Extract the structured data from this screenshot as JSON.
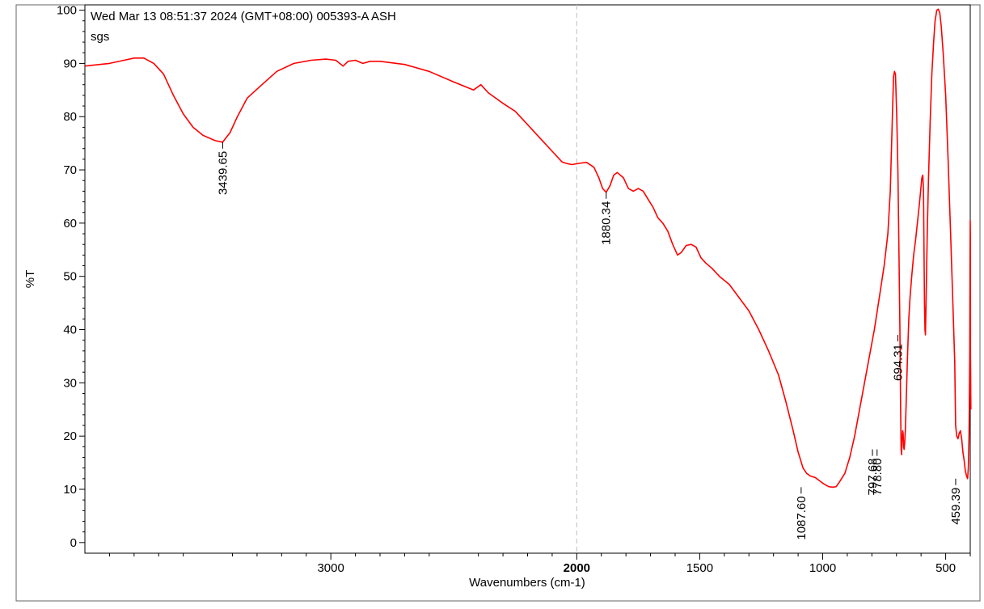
{
  "header": {
    "line1": "Wed Mar 13 08:51:37 2024 (GMT+08:00)  005393-A  ASH",
    "line2": "sgs"
  },
  "chart_data": {
    "type": "line",
    "title": "",
    "xlabel": "Wavenumbers (cm-1)",
    "ylabel": "%T",
    "xlim": [
      4000,
      400
    ],
    "ylim": [
      -2,
      101
    ],
    "x_reversed": true,
    "grid": false,
    "reference_line": {
      "x": 2000,
      "style": "dashed",
      "color": "#c8c8c8"
    },
    "x_ticks": [
      {
        "value": 3000,
        "label": "3000",
        "bold": false
      },
      {
        "value": 2000,
        "label": "2000",
        "bold": true
      },
      {
        "value": 1500,
        "label": "1500",
        "bold": false
      },
      {
        "value": 1000,
        "label": "1000",
        "bold": false
      },
      {
        "value": 500,
        "label": "500",
        "bold": false
      }
    ],
    "y_ticks": [
      {
        "value": 0,
        "label": "0"
      },
      {
        "value": 10,
        "label": "10"
      },
      {
        "value": 20,
        "label": "20"
      },
      {
        "value": 30,
        "label": "30"
      },
      {
        "value": 40,
        "label": "40"
      },
      {
        "value": 50,
        "label": "50"
      },
      {
        "value": 60,
        "label": "60"
      },
      {
        "value": 70,
        "label": "70"
      },
      {
        "value": 80,
        "label": "80"
      },
      {
        "value": 90,
        "label": "90"
      },
      {
        "value": 100,
        "label": "100"
      }
    ],
    "series": [
      {
        "color": "#ff0000",
        "points": [
          [
            4000,
            89.5
          ],
          [
            3900,
            90.0
          ],
          [
            3850,
            90.5
          ],
          [
            3800,
            91.0
          ],
          [
            3760,
            91.0
          ],
          [
            3720,
            90.0
          ],
          [
            3680,
            88.0
          ],
          [
            3640,
            84.0
          ],
          [
            3600,
            80.5
          ],
          [
            3560,
            78.0
          ],
          [
            3520,
            76.5
          ],
          [
            3470,
            75.5
          ],
          [
            3439.65,
            75.2
          ],
          [
            3410,
            77.0
          ],
          [
            3380,
            80.0
          ],
          [
            3340,
            83.5
          ],
          [
            3280,
            86.0
          ],
          [
            3220,
            88.5
          ],
          [
            3150,
            90.0
          ],
          [
            3080,
            90.6
          ],
          [
            3020,
            90.8
          ],
          [
            2980,
            90.6
          ],
          [
            2950,
            89.5
          ],
          [
            2930,
            90.4
          ],
          [
            2900,
            90.6
          ],
          [
            2870,
            90.0
          ],
          [
            2840,
            90.4
          ],
          [
            2800,
            90.4
          ],
          [
            2700,
            89.8
          ],
          [
            2600,
            88.5
          ],
          [
            2500,
            86.5
          ],
          [
            2420,
            85.0
          ],
          [
            2390,
            86.0
          ],
          [
            2360,
            84.5
          ],
          [
            2300,
            82.5
          ],
          [
            2250,
            81.0
          ],
          [
            2200,
            78.5
          ],
          [
            2150,
            76.0
          ],
          [
            2100,
            73.5
          ],
          [
            2060,
            71.5
          ],
          [
            2040,
            71.2
          ],
          [
            2020,
            71.0
          ],
          [
            1980,
            71.3
          ],
          [
            1960,
            71.4
          ],
          [
            1930,
            70.5
          ],
          [
            1910,
            68.5
          ],
          [
            1895,
            66.5
          ],
          [
            1880.34,
            65.8
          ],
          [
            1865,
            67.0
          ],
          [
            1850,
            69.0
          ],
          [
            1835,
            69.5
          ],
          [
            1810,
            68.5
          ],
          [
            1790,
            66.5
          ],
          [
            1770,
            66.0
          ],
          [
            1750,
            66.5
          ],
          [
            1730,
            66.0
          ],
          [
            1710,
            64.5
          ],
          [
            1690,
            63.0
          ],
          [
            1670,
            61.0
          ],
          [
            1650,
            60.0
          ],
          [
            1630,
            58.5
          ],
          [
            1610,
            56.0
          ],
          [
            1590,
            54.0
          ],
          [
            1575,
            54.5
          ],
          [
            1555,
            55.8
          ],
          [
            1535,
            56.0
          ],
          [
            1515,
            55.5
          ],
          [
            1495,
            53.5
          ],
          [
            1475,
            52.5
          ],
          [
            1450,
            51.5
          ],
          [
            1420,
            50.0
          ],
          [
            1380,
            48.5
          ],
          [
            1340,
            46.0
          ],
          [
            1300,
            43.5
          ],
          [
            1260,
            40.0
          ],
          [
            1220,
            36.0
          ],
          [
            1180,
            31.5
          ],
          [
            1150,
            26.5
          ],
          [
            1120,
            21.0
          ],
          [
            1100,
            17.0
          ],
          [
            1080,
            14.0
          ],
          [
            1065,
            13.0
          ],
          [
            1050,
            12.5
          ],
          [
            1030,
            12.2
          ],
          [
            1010,
            11.5
          ],
          [
            995,
            11.0
          ],
          [
            975,
            10.5
          ],
          [
            960,
            10.4
          ],
          [
            945,
            10.5
          ],
          [
            930,
            11.5
          ],
          [
            910,
            13.0
          ],
          [
            890,
            16.0
          ],
          [
            870,
            20.0
          ],
          [
            850,
            25.0
          ],
          [
            830,
            30.0
          ],
          [
            810,
            35.0
          ],
          [
            790,
            40.0
          ],
          [
            770,
            46.0
          ],
          [
            750,
            52.0
          ],
          [
            735,
            58.0
          ],
          [
            725,
            66.0
          ],
          [
            718,
            78.0
          ],
          [
            712,
            87.5
          ],
          [
            708,
            88.5
          ],
          [
            704,
            88.0
          ],
          [
            699,
            80.0
          ],
          [
            694.31,
            70.0
          ],
          [
            690,
            55.0
          ],
          [
            686,
            40.0
          ],
          [
            683,
            25.0
          ],
          [
            681,
            17.5
          ],
          [
            679,
            16.5
          ],
          [
            677,
            19.5
          ],
          [
            675,
            21.0
          ],
          [
            673,
            20.5
          ],
          [
            671,
            18.0
          ],
          [
            669,
            17.5
          ],
          [
            667,
            18.5
          ],
          [
            664,
            21.0
          ],
          [
            660,
            27.0
          ],
          [
            655,
            35.0
          ],
          [
            650,
            42.0
          ],
          [
            645,
            46.0
          ],
          [
            638,
            50.0
          ],
          [
            630,
            54.0
          ],
          [
            622,
            57.0
          ],
          [
            615,
            60.0
          ],
          [
            608,
            63.0
          ],
          [
            602,
            66.0
          ],
          [
            597,
            68.5
          ],
          [
            593,
            69.0
          ],
          [
            590,
            66.0
          ],
          [
            588,
            55.0
          ],
          [
            586,
            45.0
          ],
          [
            584,
            40.0
          ],
          [
            582,
            39.0
          ],
          [
            580,
            45.0
          ],
          [
            575,
            58.0
          ],
          [
            570,
            68.0
          ],
          [
            563,
            79.0
          ],
          [
            556,
            88.0
          ],
          [
            549,
            94.0
          ],
          [
            543,
            98.0
          ],
          [
            536,
            100.0
          ],
          [
            530,
            100.2
          ],
          [
            524,
            99.5
          ],
          [
            518,
            97.0
          ],
          [
            510,
            92.0
          ],
          [
            500,
            84.0
          ],
          [
            490,
            72.0
          ],
          [
            480,
            58.0
          ],
          [
            470,
            44.0
          ],
          [
            463,
            34.0
          ],
          [
            459.39,
            22.0
          ],
          [
            455,
            20.0
          ],
          [
            450,
            19.5
          ],
          [
            445,
            20.5
          ],
          [
            440,
            21.0
          ],
          [
            435,
            19.5
          ],
          [
            430,
            17.0
          ],
          [
            425,
            15.5
          ],
          [
            420,
            13.5
          ],
          [
            415,
            12.5
          ],
          [
            411,
            12.0
          ],
          [
            408,
            14.0
          ],
          [
            405,
            20.0
          ],
          [
            402,
            35.0
          ],
          [
            401,
            52.0
          ],
          [
            400,
            60.5
          ],
          [
            399.5,
            56.0
          ],
          [
            399,
            35.0
          ],
          [
            398.5,
            31.5
          ],
          [
            398,
            28.0
          ],
          [
            397.5,
            25.0
          ]
        ]
      }
    ],
    "peak_labels": [
      {
        "label": "3439.65",
        "x": 3439.65,
        "y": 75.2
      },
      {
        "label": "1880.34",
        "x": 1880.34,
        "y": 65.8
      },
      {
        "label": "1087.60",
        "x": 1087.6,
        "y": 10.4
      },
      {
        "label": "797.68",
        "x": 797.68,
        "y": 17.5
      },
      {
        "label": "778.80",
        "x": 778.8,
        "y": 17.5
      },
      {
        "label": "694.31",
        "x": 694.31,
        "y": 39.0
      },
      {
        "label": "459.39",
        "x": 459.39,
        "y": 12.0
      }
    ]
  }
}
